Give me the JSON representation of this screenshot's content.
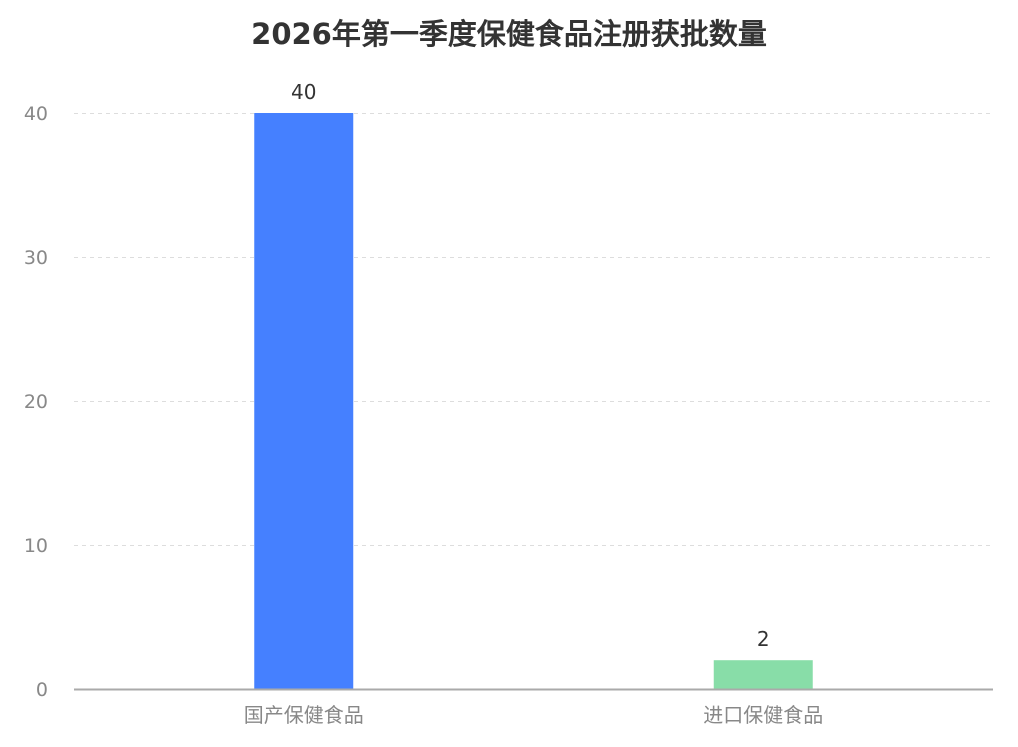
{
  "chart_data": {
    "type": "bar",
    "title": "2026年第一季度保健食品注册获批数量",
    "xlabel": "",
    "ylabel": "",
    "categories": [
      "国产保健食品",
      "进口保健食品"
    ],
    "values": [
      40,
      2
    ],
    "colors": [
      "#4580FF",
      "#88DDA8"
    ],
    "ylim": [
      0,
      40
    ],
    "yticks": [
      0,
      10,
      20,
      30,
      40
    ],
    "grid": true,
    "data_labels": true,
    "legend": "none"
  }
}
